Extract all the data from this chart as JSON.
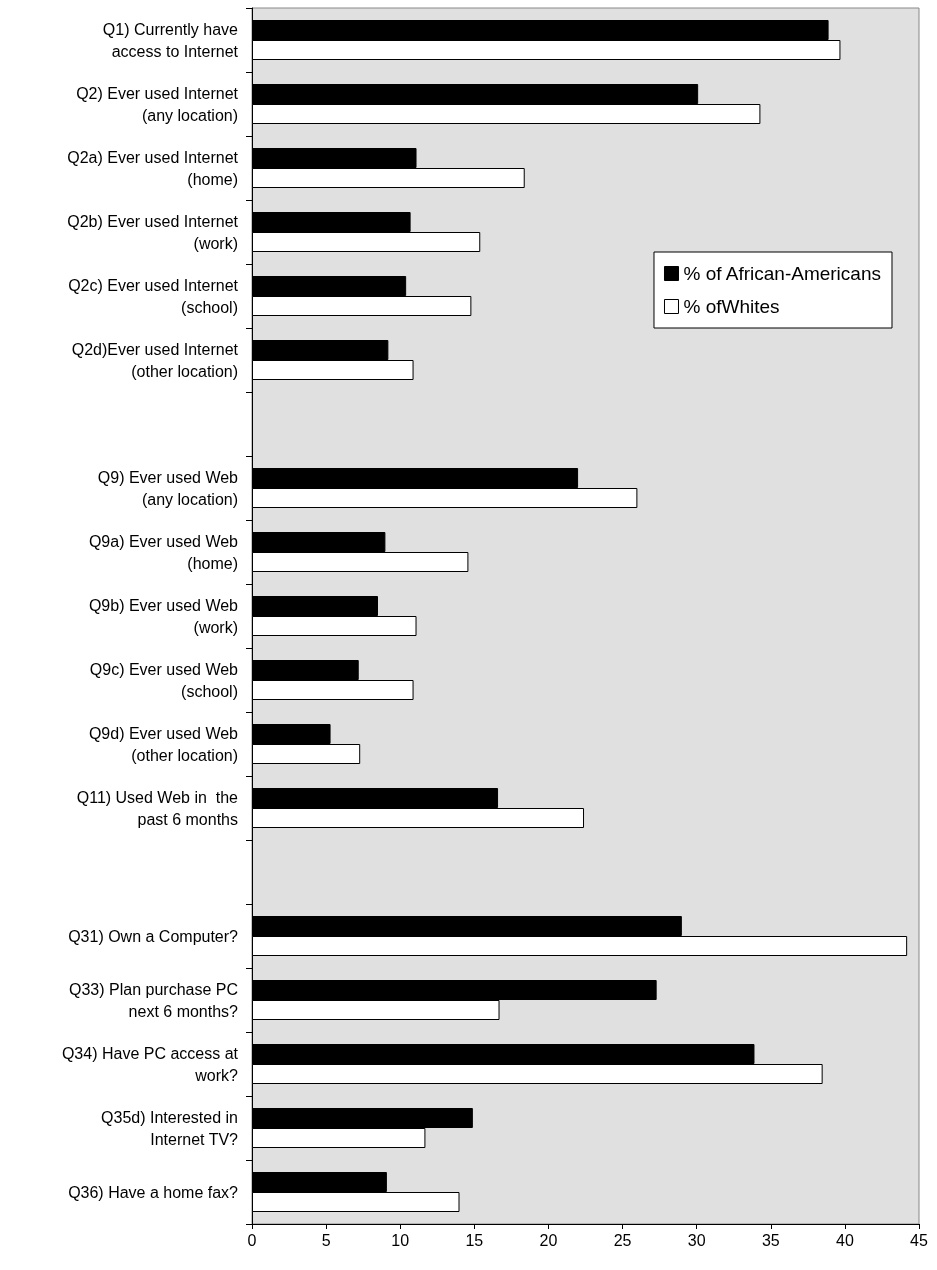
{
  "chart_data": {
    "type": "bar",
    "orientation": "horizontal",
    "categories": [
      "Q1) Currently have\naccess to Internet",
      "Q2) Ever used Internet\n(any location)",
      "Q2a) Ever used Internet\n(home)",
      "Q2b) Ever used Internet\n(work)",
      "Q2c) Ever used Internet\n(school)",
      "Q2d)Ever used Internet\n(other location)",
      null,
      "Q9) Ever used Web\n(any location)",
      "Q9a) Ever used Web\n(home)",
      "Q9b) Ever used Web\n(work)",
      "Q9c) Ever used Web\n(school)",
      "Q9d) Ever used Web\n(other location)",
      "Q11) Used Web in  the\npast 6 months",
      null,
      "Q31) Own a Computer?",
      "Q33) Plan purchase PC\nnext 6 months?",
      "Q34) Have PC access at\nwork?",
      "Q35d) Interested in\nInternet TV?",
      "Q36) Have a home fax?"
    ],
    "series": [
      {
        "name": "% of African-Americans",
        "color": "#000000",
        "values": [
          38.9,
          30.1,
          11.1,
          10.7,
          10.4,
          9.2,
          null,
          22.0,
          9.0,
          8.5,
          7.2,
          5.3,
          16.6,
          null,
          29.0,
          27.3,
          33.9,
          14.9,
          9.1
        ]
      },
      {
        "name": "% ofWhites",
        "color": "#ffffff",
        "values": [
          39.7,
          34.3,
          18.4,
          15.4,
          14.8,
          10.9,
          null,
          26.0,
          14.6,
          11.1,
          10.9,
          7.3,
          22.4,
          null,
          44.2,
          16.7,
          38.5,
          11.7,
          14.0
        ]
      }
    ],
    "xlim": [
      0,
      45
    ],
    "xticks": [
      0,
      5,
      10,
      15,
      20,
      25,
      30,
      35,
      40,
      45
    ],
    "grid": false,
    "legend": "right"
  }
}
